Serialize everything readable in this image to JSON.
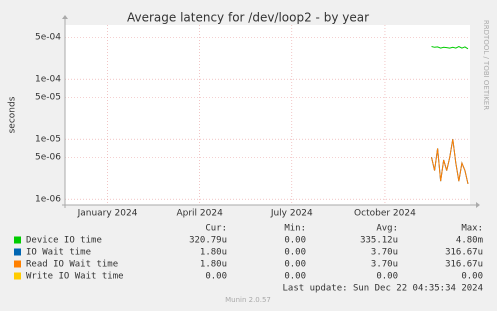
{
  "chart_data": {
    "type": "line",
    "title": "Average latency for /dev/loop2 - by year",
    "y_label": "seconds",
    "side_text": "RRDTOOL / TOBI OETIKER",
    "log_y": true,
    "grid": true,
    "xlim": [
      "2023-11-20",
      "2024-12-24"
    ],
    "xticks": [
      {
        "value": "2024-01-01",
        "label": "January 2024"
      },
      {
        "value": "2024-04-01",
        "label": "April 2024"
      },
      {
        "value": "2024-07-01",
        "label": "July 2024"
      },
      {
        "value": "2024-10-01",
        "label": "October 2024"
      }
    ],
    "ylim": [
      8e-07,
      0.0008
    ],
    "yticks": [
      {
        "value": 1e-06,
        "label": "1e-06"
      },
      {
        "value": 5e-06,
        "label": "5e-06"
      },
      {
        "value": 1e-05,
        "label": "1e-05"
      },
      {
        "value": 5e-05,
        "label": "5e-05"
      },
      {
        "value": 0.0001,
        "label": "1e-04"
      },
      {
        "value": 0.0005,
        "label": "5e-04"
      }
    ],
    "x": [
      "2024-11-16",
      "2024-11-19",
      "2024-11-22",
      "2024-11-25",
      "2024-11-28",
      "2024-12-01",
      "2024-12-04",
      "2024-12-07",
      "2024-12-10",
      "2024-12-13",
      "2024-12-16",
      "2024-12-19",
      "2024-12-22"
    ],
    "legend_columns": [
      "Cur:",
      "Min:",
      "Avg:",
      "Max:"
    ],
    "series": [
      {
        "name": "Device IO time",
        "color": "#00cc00",
        "values": [
          0.00035,
          0.00034,
          0.000345,
          0.00033,
          0.00034,
          0.000335,
          0.00033,
          0.00034,
          0.00033,
          0.00035,
          0.00033,
          0.000345,
          0.00032079
        ],
        "stats": [
          "320.79u",
          "0.00",
          "335.12u",
          "4.80m"
        ]
      },
      {
        "name": "IO Wait time",
        "color": "#0066b3",
        "values": [
          5e-06,
          3e-06,
          7e-06,
          2e-06,
          4.5e-06,
          3e-06,
          5e-06,
          1e-05,
          4e-06,
          2e-06,
          4e-06,
          3e-06,
          1.8e-06
        ],
        "stats": [
          "1.80u",
          "0.00",
          "3.70u",
          "316.67u"
        ]
      },
      {
        "name": "Read IO Wait time",
        "color": "#ff8000",
        "values": [
          5e-06,
          3e-06,
          7e-06,
          2e-06,
          4.5e-06,
          3e-06,
          5e-06,
          1e-05,
          4e-06,
          2e-06,
          4e-06,
          3e-06,
          1.8e-06
        ],
        "stats": [
          "1.80u",
          "0.00",
          "3.70u",
          "316.67u"
        ]
      },
      {
        "name": "Write IO Wait time",
        "color": "#ffcc00",
        "values": [
          null,
          null,
          null,
          null,
          null,
          null,
          null,
          null,
          null,
          null,
          null,
          null,
          null
        ],
        "stats": [
          "0.00",
          "0.00",
          "0.00",
          "0.00"
        ]
      }
    ],
    "last_update": "Last update: Sun Dec 22 04:35:34 2024",
    "footer": "Munin 2.0.57"
  }
}
